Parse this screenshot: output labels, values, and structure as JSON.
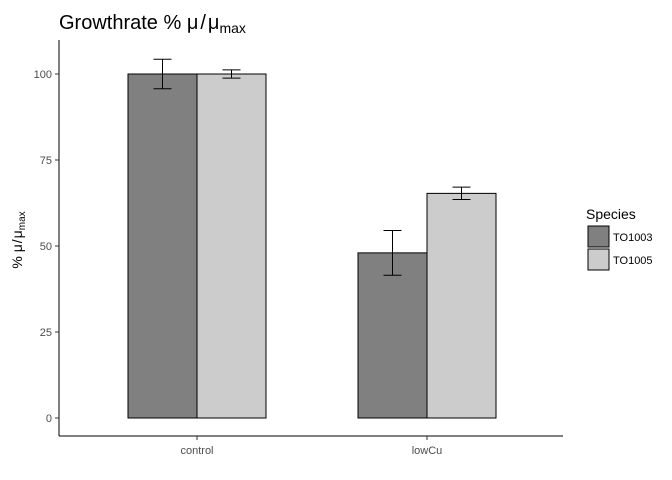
{
  "chart_data": {
    "type": "bar",
    "title": {
      "prefix": "Growthrate % ",
      "mu": "μ",
      "slash": "/",
      "mu_max": "μ",
      "subscript": "max"
    },
    "ylabel": {
      "prefix": "% ",
      "mu": "μ",
      "slash": "/",
      "mu_max": "μ",
      "subscript": "max"
    },
    "xlabel": "",
    "categories": [
      "control",
      "lowCu"
    ],
    "series": [
      {
        "name": "TO1003",
        "color": "#808080",
        "values": [
          100,
          48
        ],
        "error": [
          4.3,
          6.5
        ]
      },
      {
        "name": "TO1005",
        "color": "#cccccc",
        "values": [
          100,
          65.3
        ],
        "error": [
          1.2,
          1.8
        ]
      }
    ],
    "ylim": [
      -5,
      110
    ],
    "yticks": [
      0,
      25,
      50,
      75,
      100
    ],
    "ytick_labels": [
      "0",
      "25",
      "50",
      "75",
      "100"
    ],
    "legend": {
      "title": "Species",
      "position": "right"
    },
    "grid": false
  }
}
